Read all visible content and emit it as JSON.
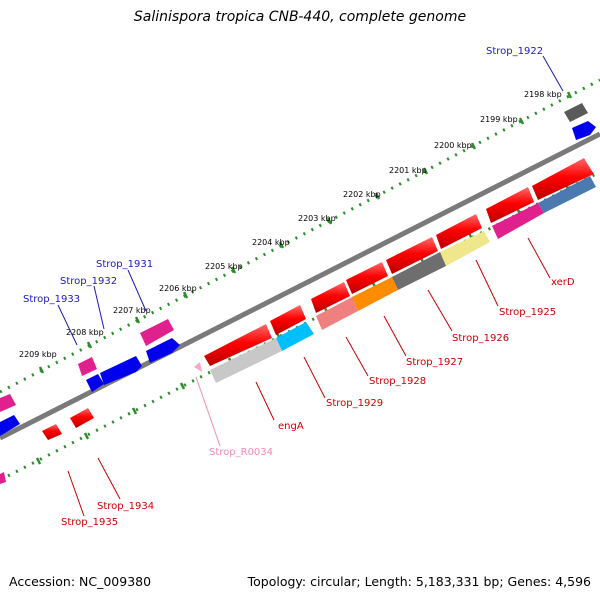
{
  "title": "Salinispora tropica CNB-440, complete genome",
  "footer": {
    "accession": "Accession: NC_009380",
    "stats": "Topology: circular; Length: 5,183,331 bp; Genes: 4,596"
  },
  "ticks": [
    "2198 kbp",
    "2199 kbp",
    "2200 kbp",
    "2201 kbp",
    "2202 kbp",
    "2203 kbp",
    "2204 kbp",
    "2205 kbp",
    "2206 kbp",
    "2207 kbp",
    "2208 kbp",
    "2209 kbp"
  ],
  "gene_labels": [
    "Strop_1922",
    "Strop_1931",
    "Strop_1932",
    "Strop_1933",
    "xerD",
    "Strop_1925",
    "Strop_1926",
    "Strop_1927",
    "Strop_1928",
    "Strop_1929",
    "engA",
    "Strop_R0034",
    "Strop_1934",
    "Strop_1935"
  ],
  "colors": {
    "label_blue": "#1a1ab8",
    "label_red": "#cc0000",
    "label_pink": "#f28bb5",
    "backbone": "#808080",
    "ruler_dots": "#2e8b2e"
  }
}
